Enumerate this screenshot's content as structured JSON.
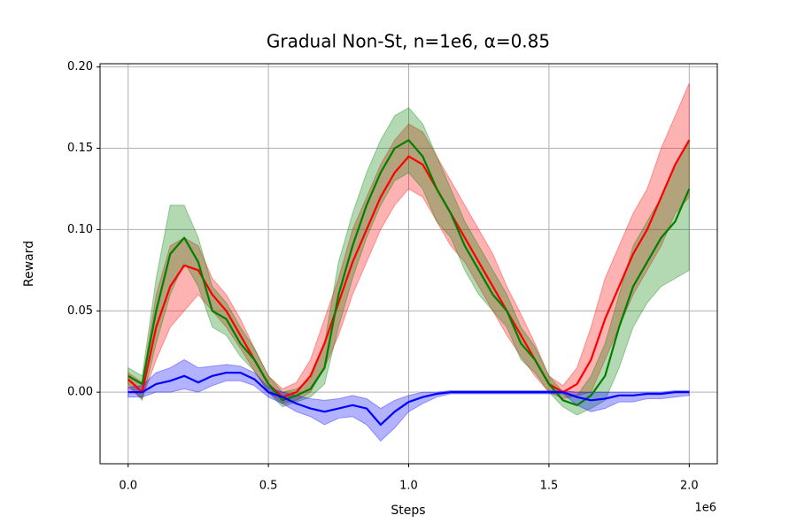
{
  "chart_data": {
    "type": "line",
    "title": "Gradual Non-St, n=1e6, α=0.85",
    "x_label": "Steps",
    "y_label": "Reward",
    "x_offset_label": "1e6",
    "grid": true,
    "xlim": [
      -100000,
      2100000
    ],
    "ylim": [
      -0.044,
      0.202
    ],
    "xticks": [
      {
        "value": 0,
        "label": "0.0"
      },
      {
        "value": 500000,
        "label": "0.5"
      },
      {
        "value": 1000000,
        "label": "1.0"
      },
      {
        "value": 1500000,
        "label": "1.5"
      },
      {
        "value": 2000000,
        "label": "2.0"
      }
    ],
    "yticks": [
      {
        "value": 0,
        "label": "0.00"
      },
      {
        "value": 0.05,
        "label": "0.05"
      },
      {
        "value": 0.1,
        "label": "0.10"
      },
      {
        "value": 0.15,
        "label": "0.15"
      },
      {
        "value": 0.2,
        "label": "0.20"
      }
    ],
    "x": [
      0,
      50000,
      100000,
      150000,
      200000,
      250000,
      300000,
      350000,
      400000,
      450000,
      500000,
      550000,
      600000,
      650000,
      700000,
      750000,
      800000,
      850000,
      900000,
      950000,
      1000000,
      1050000,
      1100000,
      1150000,
      1200000,
      1250000,
      1300000,
      1350000,
      1400000,
      1450000,
      1500000,
      1550000,
      1600000,
      1650000,
      1700000,
      1750000,
      1800000,
      1850000,
      1900000,
      1950000,
      2000000
    ],
    "series": [
      {
        "color": "#ff0000",
        "values": [
          0.008,
          0.0,
          0.04,
          0.065,
          0.078,
          0.075,
          0.06,
          0.05,
          0.035,
          0.02,
          0.005,
          -0.003,
          0.0,
          0.01,
          0.03,
          0.055,
          0.08,
          0.1,
          0.12,
          0.135,
          0.145,
          0.14,
          0.125,
          0.11,
          0.095,
          0.08,
          0.065,
          0.05,
          0.035,
          0.02,
          0.005,
          0.0,
          0.005,
          0.02,
          0.045,
          0.065,
          0.085,
          0.1,
          0.12,
          0.14,
          0.155
        ],
        "lower": [
          0.003,
          -0.004,
          0.02,
          0.04,
          0.05,
          0.06,
          0.05,
          0.04,
          0.027,
          0.013,
          0.0,
          -0.007,
          -0.005,
          0.0,
          0.015,
          0.035,
          0.06,
          0.08,
          0.1,
          0.115,
          0.125,
          0.12,
          0.105,
          0.09,
          0.08,
          0.065,
          0.05,
          0.035,
          0.022,
          0.01,
          0.0,
          -0.004,
          -0.002,
          0.0,
          0.02,
          0.04,
          0.06,
          0.075,
          0.09,
          0.11,
          0.12
        ],
        "upper": [
          0.012,
          0.006,
          0.06,
          0.09,
          0.095,
          0.09,
          0.07,
          0.06,
          0.045,
          0.027,
          0.01,
          0.002,
          0.006,
          0.02,
          0.045,
          0.07,
          0.1,
          0.12,
          0.14,
          0.155,
          0.165,
          0.16,
          0.145,
          0.13,
          0.115,
          0.1,
          0.085,
          0.065,
          0.048,
          0.03,
          0.01,
          0.004,
          0.015,
          0.04,
          0.07,
          0.09,
          0.11,
          0.125,
          0.15,
          0.17,
          0.19
        ]
      },
      {
        "color": "#008000",
        "values": [
          0.01,
          0.005,
          0.05,
          0.085,
          0.095,
          0.08,
          0.05,
          0.045,
          0.03,
          0.02,
          0.005,
          -0.005,
          -0.002,
          0.002,
          0.015,
          0.06,
          0.09,
          0.115,
          0.135,
          0.15,
          0.155,
          0.145,
          0.125,
          0.11,
          0.09,
          0.075,
          0.06,
          0.05,
          0.03,
          0.02,
          0.005,
          -0.005,
          -0.008,
          -0.002,
          0.01,
          0.04,
          0.065,
          0.08,
          0.095,
          0.105,
          0.125
        ],
        "lower": [
          0.005,
          -0.005,
          0.03,
          0.06,
          0.08,
          0.065,
          0.04,
          0.035,
          0.022,
          0.013,
          0.0,
          -0.009,
          -0.006,
          -0.003,
          0.005,
          0.04,
          0.07,
          0.095,
          0.115,
          0.13,
          0.135,
          0.125,
          0.105,
          0.095,
          0.075,
          0.06,
          0.05,
          0.04,
          0.02,
          0.012,
          0.0,
          -0.009,
          -0.014,
          -0.01,
          -0.005,
          0.015,
          0.04,
          0.055,
          0.065,
          0.07,
          0.075
        ],
        "upper": [
          0.015,
          0.01,
          0.07,
          0.115,
          0.115,
          0.095,
          0.065,
          0.055,
          0.04,
          0.027,
          0.01,
          0.0,
          0.002,
          0.008,
          0.03,
          0.08,
          0.11,
          0.135,
          0.155,
          0.17,
          0.175,
          0.165,
          0.145,
          0.125,
          0.105,
          0.09,
          0.075,
          0.06,
          0.04,
          0.028,
          0.01,
          0.0,
          -0.002,
          0.01,
          0.03,
          0.06,
          0.09,
          0.105,
          0.12,
          0.14,
          0.155
        ]
      },
      {
        "color": "#0000ff",
        "values": [
          0.0,
          0.0,
          0.005,
          0.007,
          0.01,
          0.006,
          0.01,
          0.012,
          0.012,
          0.008,
          0.0,
          -0.003,
          -0.007,
          -0.01,
          -0.012,
          -0.01,
          -0.008,
          -0.01,
          -0.02,
          -0.012,
          -0.006,
          -0.003,
          -0.001,
          0.0,
          0.0,
          0.0,
          0.0,
          0.0,
          0.0,
          0.0,
          0.0,
          0.0,
          -0.003,
          -0.005,
          -0.004,
          -0.002,
          -0.002,
          -0.001,
          -0.001,
          0.0,
          0.0
        ],
        "lower": [
          -0.003,
          -0.003,
          0.0,
          0.0,
          0.002,
          0.0,
          0.004,
          0.007,
          0.007,
          0.004,
          -0.003,
          -0.007,
          -0.012,
          -0.015,
          -0.02,
          -0.016,
          -0.015,
          -0.02,
          -0.03,
          -0.022,
          -0.012,
          -0.007,
          -0.003,
          -0.001,
          -0.001,
          -0.001,
          -0.001,
          -0.001,
          -0.001,
          -0.001,
          -0.001,
          -0.001,
          -0.008,
          -0.012,
          -0.01,
          -0.006,
          -0.006,
          -0.004,
          -0.004,
          -0.003,
          -0.002
        ],
        "upper": [
          0.003,
          0.004,
          0.012,
          0.015,
          0.02,
          0.015,
          0.016,
          0.017,
          0.016,
          0.012,
          0.003,
          0.0,
          -0.002,
          -0.004,
          -0.005,
          -0.004,
          -0.002,
          -0.004,
          -0.01,
          -0.005,
          -0.002,
          0.0,
          0.0,
          0.001,
          0.001,
          0.001,
          0.001,
          0.001,
          0.001,
          0.001,
          0.001,
          0.001,
          0.0,
          0.0,
          0.0,
          0.0,
          0.0,
          0.0,
          0.0,
          0.001,
          0.001
        ]
      }
    ]
  }
}
